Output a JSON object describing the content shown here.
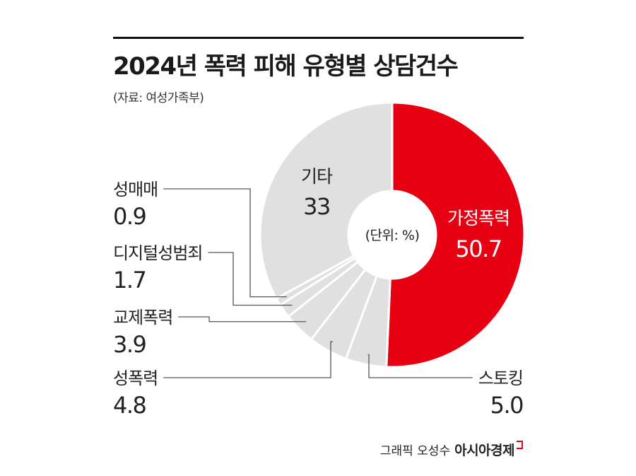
{
  "title": "2024년 폭력 피해 유형별 상담건수",
  "source": "(자료: 여성가족부)",
  "credit": {
    "text": "그래픽 오성수",
    "brand": "아시아경제"
  },
  "colors": {
    "highlight": "#e60012",
    "other": "#e0e0e0",
    "separator": "#ffffff",
    "leader": "#555555"
  },
  "chart_data": {
    "type": "pie",
    "center_label": "(단위: %)",
    "categories": [
      "가정폭력",
      "스토킹",
      "성폭력",
      "교제폭력",
      "디지털성범죄",
      "성매매",
      "기타"
    ],
    "values": [
      50.7,
      5.0,
      4.8,
      3.9,
      1.7,
      0.9,
      33
    ],
    "value_labels": [
      "50.7",
      "5.0",
      "4.8",
      "3.9",
      "1.7",
      "0.9",
      "33"
    ],
    "slices": [
      {
        "label": "가정폭력",
        "value": 50.7,
        "value_label": "50.7",
        "color": "#e60012"
      },
      {
        "label": "스토킹",
        "value": 5.0,
        "value_label": "5.0",
        "color": "#e0e0e0"
      },
      {
        "label": "성폭력",
        "value": 4.8,
        "value_label": "4.8",
        "color": "#e0e0e0"
      },
      {
        "label": "교제폭력",
        "value": 3.9,
        "value_label": "3.9",
        "color": "#e0e0e0"
      },
      {
        "label": "디지털성범죄",
        "value": 1.7,
        "value_label": "1.7",
        "color": "#e0e0e0"
      },
      {
        "label": "성매매",
        "value": 0.9,
        "value_label": "0.9",
        "color": "#e0e0e0"
      },
      {
        "label": "기타",
        "value": 33,
        "value_label": "33",
        "color": "#e0e0e0"
      }
    ]
  }
}
